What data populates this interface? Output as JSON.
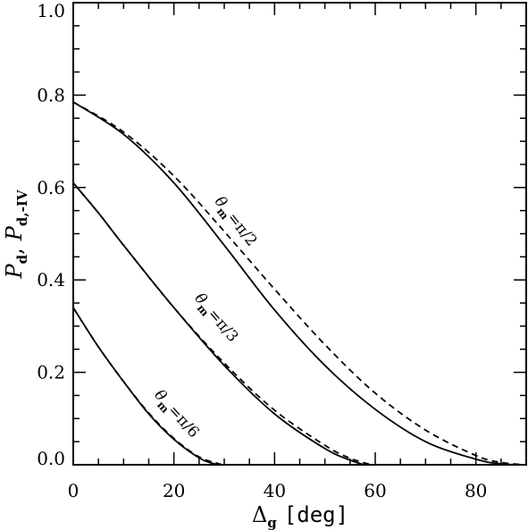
{
  "chart_data": {
    "type": "line",
    "xlabel": {
      "symbol": "Δ",
      "sub": "g",
      "unit": "[deg]"
    },
    "ylabel": {
      "a": "P",
      "a_sub": "d",
      "sep": ",",
      "b": "P",
      "b_sub": "d,-IV"
    },
    "xlim": [
      0,
      90
    ],
    "ylim": [
      0,
      1
    ],
    "x_ticks": [
      0,
      20,
      40,
      60,
      80
    ],
    "x_tick_labels": [
      "0",
      "20",
      "40",
      "60",
      "80"
    ],
    "y_ticks": [
      0,
      0.2,
      0.4,
      0.6,
      0.8,
      1.0
    ],
    "y_tick_labels": [
      "0.0",
      "0.2",
      "0.4",
      "0.6",
      "0.8",
      "1.0"
    ],
    "grid": false,
    "legend": "none",
    "series": [
      {
        "label": {
          "theta": "θ",
          "sub": "m",
          "rest": "=π/2"
        },
        "style": "solid",
        "x": [
          0,
          10,
          20,
          30,
          40,
          50,
          60,
          70,
          80,
          85,
          90
        ],
        "values": [
          0.785,
          0.715,
          0.61,
          0.475,
          0.335,
          0.215,
          0.12,
          0.05,
          0.012,
          0.002,
          0.0
        ]
      },
      {
        "style": "dashed",
        "x": [
          0,
          10,
          20,
          30,
          40,
          50,
          60,
          70,
          80,
          85,
          90
        ],
        "values": [
          0.785,
          0.72,
          0.625,
          0.505,
          0.38,
          0.26,
          0.155,
          0.075,
          0.02,
          0.005,
          0.0
        ]
      },
      {
        "label": {
          "theta": "θ",
          "sub": "m",
          "rest": "=π/3"
        },
        "style": "solid",
        "x": [
          0,
          5,
          10,
          20,
          30,
          40,
          50,
          55,
          58,
          60
        ],
        "values": [
          0.61,
          0.545,
          0.475,
          0.34,
          0.215,
          0.11,
          0.035,
          0.01,
          0.0,
          0.0
        ]
      },
      {
        "style": "dashed",
        "x": [
          0,
          5,
          10,
          20,
          30,
          40,
          50,
          55,
          59,
          60
        ],
        "values": [
          0.61,
          0.545,
          0.475,
          0.34,
          0.22,
          0.118,
          0.042,
          0.014,
          0.001,
          0.0
        ]
      },
      {
        "label": {
          "theta": "θ",
          "sub": "m",
          "rest": "=π/6"
        },
        "style": "solid",
        "x": [
          0,
          5,
          10,
          15,
          20,
          25,
          28,
          30
        ],
        "values": [
          0.34,
          0.255,
          0.18,
          0.11,
          0.055,
          0.015,
          0.002,
          0.0
        ]
      },
      {
        "style": "dashed",
        "x": [
          0,
          5,
          10,
          15,
          20,
          25,
          29,
          30
        ],
        "values": [
          0.34,
          0.255,
          0.18,
          0.112,
          0.057,
          0.017,
          0.002,
          0.0
        ]
      }
    ]
  }
}
